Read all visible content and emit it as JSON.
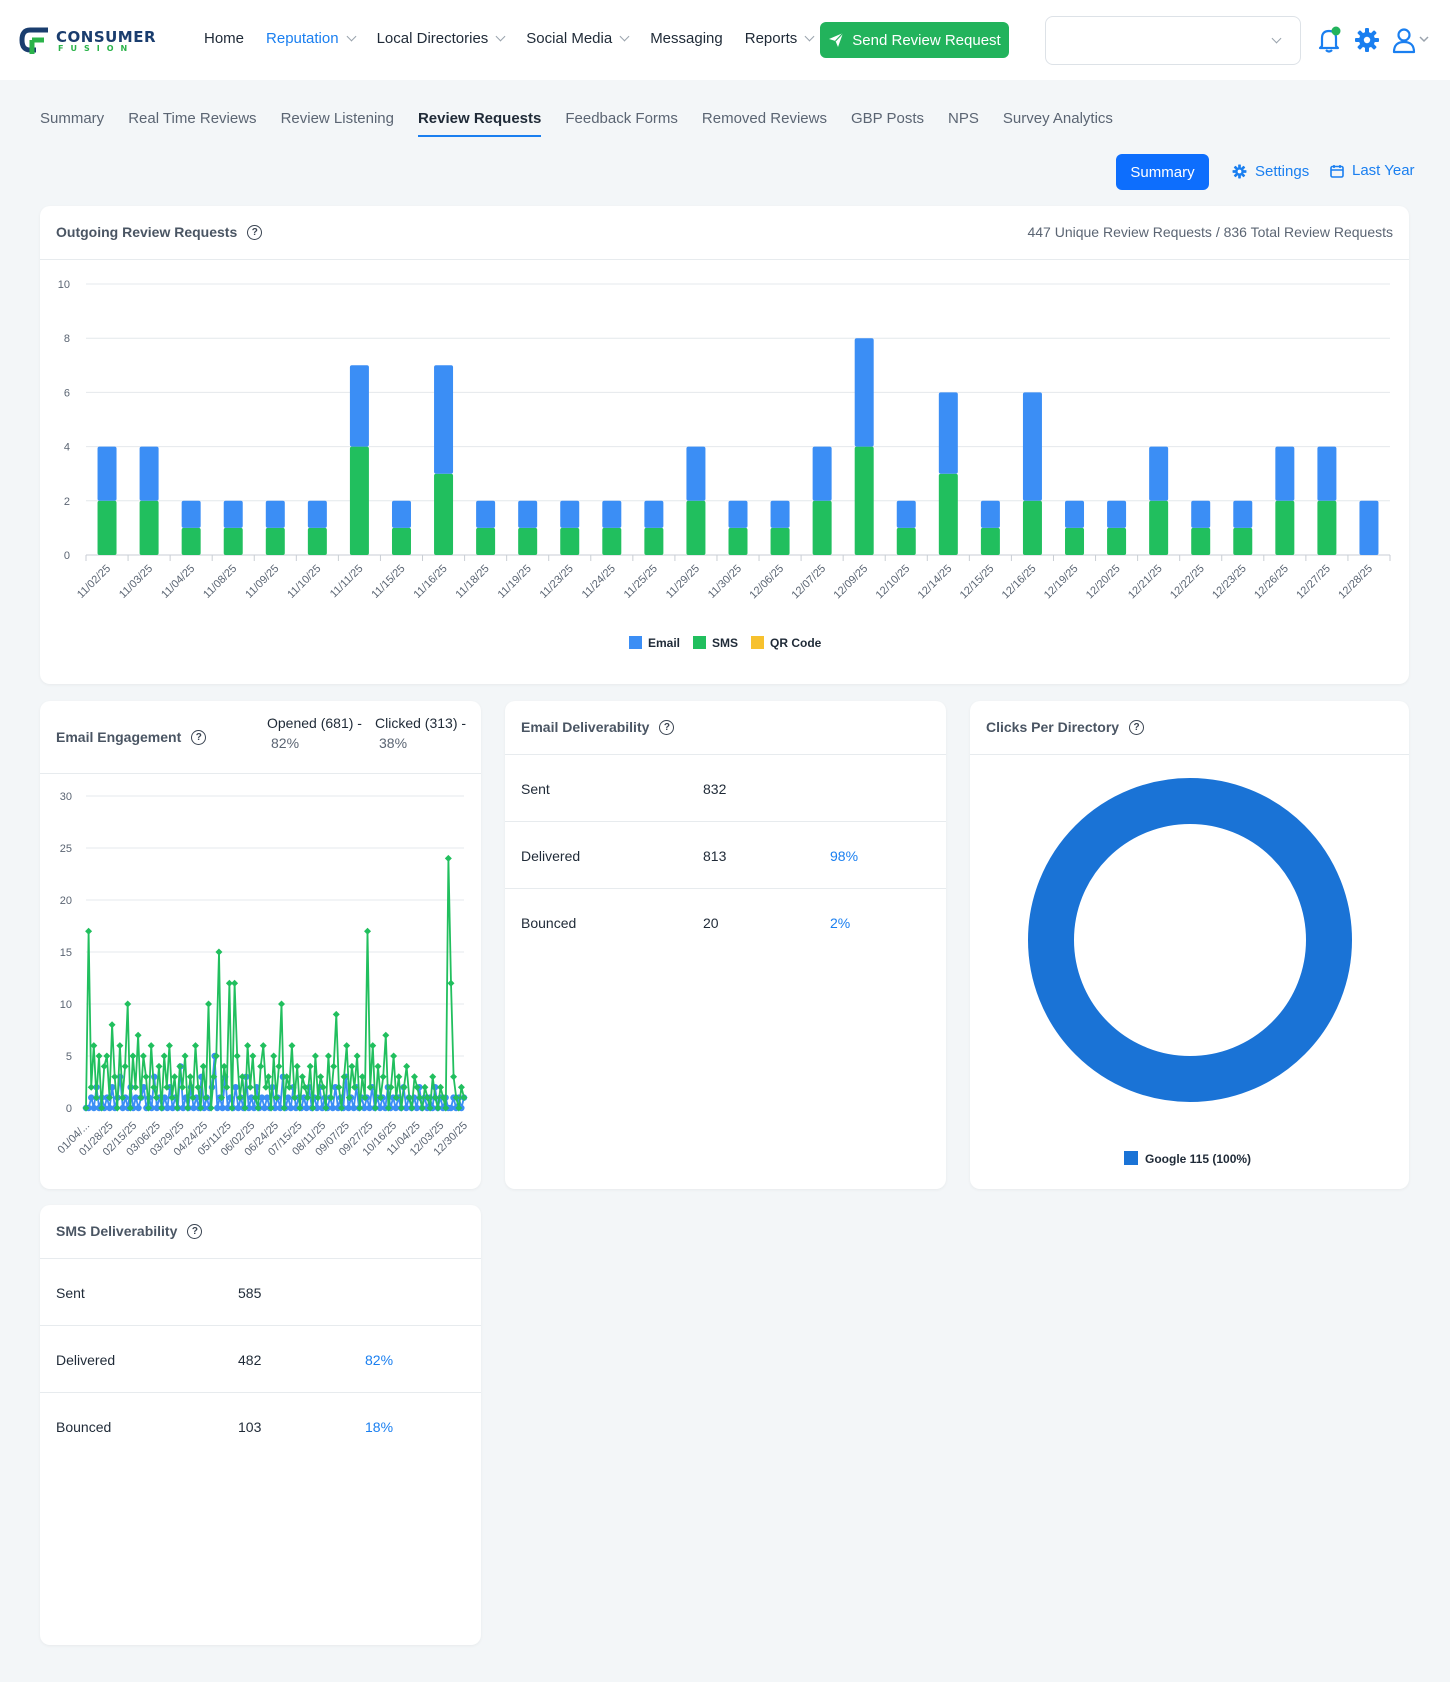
{
  "brand": {
    "name": "CONSUMER",
    "sub": "FUSION"
  },
  "nav": {
    "items": [
      {
        "label": "Home",
        "dropdown": false,
        "active": false
      },
      {
        "label": "Reputation",
        "dropdown": true,
        "active": true
      },
      {
        "label": "Local Directories",
        "dropdown": true,
        "active": false
      },
      {
        "label": "Social Media",
        "dropdown": true,
        "active": false
      },
      {
        "label": "Messaging",
        "dropdown": false,
        "active": false
      },
      {
        "label": "Reports",
        "dropdown": true,
        "active": false
      }
    ],
    "send_button": "Send Review Request"
  },
  "subtabs": [
    {
      "label": "Summary",
      "active": false
    },
    {
      "label": "Real Time Reviews",
      "active": false
    },
    {
      "label": "Review Listening",
      "active": false
    },
    {
      "label": "Review Requests",
      "active": true
    },
    {
      "label": "Feedback Forms",
      "active": false
    },
    {
      "label": "Removed Reviews",
      "active": false
    },
    {
      "label": "GBP Posts",
      "active": false
    },
    {
      "label": "NPS",
      "active": false
    },
    {
      "label": "Survey Analytics",
      "active": false
    }
  ],
  "toolbar": {
    "summary": "Summary",
    "settings": "Settings",
    "range": "Last Year"
  },
  "colors": {
    "email": "#3b8ef5",
    "sms": "#21bf5e",
    "qr": "#f7c12e",
    "donut": "#1a73d6",
    "accent": "#1a7ff0"
  },
  "outgoing": {
    "title": "Outgoing Review Requests",
    "summary": "447 Unique Review Requests / 836 Total Review Requests"
  },
  "engagement": {
    "title": "Email Engagement",
    "opened": "Opened (681) -",
    "opened_pct": "82%",
    "clicked": "Clicked (313) -",
    "clicked_pct": "38%"
  },
  "email_deliverability": {
    "title": "Email Deliverability",
    "rows": [
      {
        "label": "Sent",
        "value": "832",
        "pct": ""
      },
      {
        "label": "Delivered",
        "value": "813",
        "pct": "98%"
      },
      {
        "label": "Bounced",
        "value": "20",
        "pct": "2%"
      }
    ]
  },
  "clicks_directory": {
    "title": "Clicks Per Directory",
    "legend": "Google 115 (100%)"
  },
  "sms_deliverability": {
    "title": "SMS Deliverability",
    "rows": [
      {
        "label": "Sent",
        "value": "585",
        "pct": ""
      },
      {
        "label": "Delivered",
        "value": "482",
        "pct": "82%"
      },
      {
        "label": "Bounced",
        "value": "103",
        "pct": "18%"
      }
    ]
  },
  "chart_data": [
    {
      "type": "bar",
      "stacked": true,
      "categories": [
        "11/02/25",
        "11/03/25",
        "11/04/25",
        "11/08/25",
        "11/09/25",
        "11/10/25",
        "11/11/25",
        "11/15/25",
        "11/16/25",
        "11/18/25",
        "11/19/25",
        "11/23/25",
        "11/24/25",
        "11/25/25",
        "11/29/25",
        "11/30/25",
        "12/06/25",
        "12/07/25",
        "12/09/25",
        "12/10/25",
        "12/14/25",
        "12/15/25",
        "12/16/25",
        "12/19/25",
        "12/20/25",
        "12/21/25",
        "12/22/25",
        "12/23/25",
        "12/26/25",
        "12/27/25",
        "12/28/25"
      ],
      "series": [
        {
          "name": "SMS",
          "values": [
            2,
            2,
            1,
            1,
            1,
            1,
            4,
            1,
            3,
            1,
            1,
            1,
            1,
            1,
            2,
            1,
            1,
            2,
            4,
            1,
            3,
            1,
            2,
            1,
            1,
            2,
            1,
            1,
            2,
            2,
            0
          ]
        },
        {
          "name": "Email",
          "values": [
            2,
            2,
            1,
            1,
            1,
            1,
            3,
            1,
            4,
            1,
            1,
            1,
            1,
            1,
            2,
            1,
            1,
            2,
            4,
            1,
            3,
            1,
            4,
            1,
            1,
            2,
            1,
            1,
            2,
            2,
            2
          ]
        },
        {
          "name": "QR Code",
          "values": [
            0,
            0,
            0,
            0,
            0,
            0,
            0,
            0,
            0,
            0,
            0,
            0,
            0,
            0,
            0,
            0,
            0,
            0,
            0,
            0,
            0,
            0,
            0,
            0,
            0,
            0,
            0,
            0,
            0,
            0,
            0
          ]
        }
      ],
      "ylim": [
        0,
        10
      ],
      "yticks": [
        0,
        2,
        4,
        6,
        8,
        10
      ],
      "legend": "bottom"
    },
    {
      "type": "line",
      "x_ticks": [
        "01/04/...",
        "01/28/25",
        "02/15/25",
        "03/06/25",
        "03/29/25",
        "04/24/25",
        "05/11/25",
        "06/02/25",
        "06/24/25",
        "07/15/25",
        "08/11/25",
        "09/07/25",
        "09/27/25",
        "10/16/25",
        "11/04/25",
        "12/03/25",
        "12/30/25"
      ],
      "ylim": [
        0,
        30
      ],
      "yticks": [
        0,
        5,
        10,
        15,
        20,
        25,
        30
      ],
      "series": [
        {
          "name": "Opened",
          "values": [
            0,
            17,
            2,
            6,
            1,
            5,
            0,
            4,
            5,
            1,
            8,
            3,
            0,
            6,
            1,
            4,
            10,
            0,
            5,
            2,
            7,
            1,
            5,
            3,
            0,
            6,
            2,
            1,
            4,
            0,
            5,
            2,
            6,
            1,
            3,
            0,
            4,
            2,
            5,
            0,
            3,
            1,
            6,
            2,
            0,
            4,
            1,
            10,
            0,
            3,
            5,
            15,
            1,
            4,
            2,
            12,
            0,
            12,
            5,
            1,
            3,
            0,
            6,
            2,
            5,
            1,
            0,
            4,
            6,
            2,
            3,
            0,
            5,
            1,
            4,
            10,
            0,
            3,
            2,
            6,
            1,
            4,
            0,
            3,
            2,
            1,
            4,
            0,
            5,
            1,
            3,
            2,
            0,
            5,
            1,
            4,
            9,
            2,
            0,
            3,
            6,
            1,
            4,
            2,
            5,
            0,
            3,
            1,
            17,
            2,
            6,
            0,
            4,
            1,
            3,
            7,
            0,
            2,
            5,
            1,
            3,
            0,
            2,
            4,
            1,
            0,
            3,
            2,
            1,
            0,
            2,
            1,
            0,
            3,
            1,
            0,
            2,
            1,
            0,
            24,
            12,
            3,
            1,
            0,
            2,
            1
          ]
        },
        {
          "name": "Clicked",
          "values": [
            0,
            0,
            1,
            0,
            2,
            0,
            1,
            0,
            1,
            0,
            2,
            0,
            1,
            3,
            0,
            1,
            0,
            2,
            0,
            1,
            0,
            1,
            2,
            0,
            1,
            0,
            3,
            0,
            1,
            0,
            1,
            0,
            2,
            0,
            1,
            0,
            4,
            0,
            1,
            0,
            2,
            0,
            1,
            0,
            3,
            0,
            1,
            0,
            2,
            5,
            0,
            1,
            0,
            3,
            0,
            1,
            0,
            2,
            0,
            1,
            0,
            3,
            0,
            1,
            0,
            2,
            0,
            1,
            0,
            1,
            0,
            2,
            0,
            1,
            0,
            3,
            0,
            1,
            0,
            2,
            0,
            1,
            0,
            1,
            0,
            2,
            0,
            1,
            0,
            2,
            0,
            1,
            0,
            1,
            0,
            2,
            0,
            1,
            0,
            3,
            0,
            1,
            0,
            2,
            0,
            1,
            0,
            1,
            0,
            2,
            0,
            1,
            0,
            1,
            0,
            2,
            0,
            1,
            0,
            1,
            0,
            2,
            0,
            1,
            0,
            1,
            0,
            2,
            0,
            1,
            0,
            1,
            0,
            2,
            0,
            1,
            0,
            1,
            0,
            0,
            1,
            0,
            1,
            0,
            1
          ]
        }
      ]
    },
    {
      "type": "pie",
      "donut": true,
      "labels": [
        "Google"
      ],
      "values": [
        115
      ],
      "legend": "bottom"
    }
  ]
}
